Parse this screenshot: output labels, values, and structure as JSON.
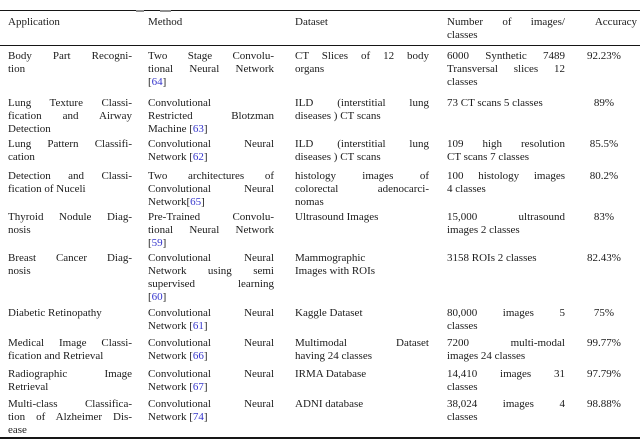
{
  "table": {
    "citation_color": "#3434cc",
    "columns": [
      "Application",
      "Method",
      "Dataset",
      "Number of images/\nclasses",
      "Accuracy"
    ],
    "rows": [
      {
        "application": "Body Part Recogni-\ntion",
        "method": "Two Stage Convolu-\ntional Neural Network\n[64]",
        "dataset": "CT Slices of 12 body\norgans",
        "number": "6000 Synthetic 7489\nTransversal slices 12\nclasses",
        "accuracy": "92.23%"
      },
      {
        "application": "Lung Texture Classi-\nfication and Airway\nDetection",
        "method": "Convolutional\nRestricted Blotzman\nMachine [63]",
        "dataset": "ILD (interstitial lung\ndiseases ) CT scans",
        "number": "73 CT scans 5 classes",
        "accuracy": "89%"
      },
      {
        "application": "Lung Pattern Classifi-\ncation",
        "method": "Convolutional Neural\nNetwork [62]",
        "dataset": "ILD (interstitial lung\ndiseases ) CT scans",
        "number": "109 high resolution\nCT scans 7 classes",
        "accuracy": "85.5%"
      },
      {
        "application": "Detection and Classi-\nfication of Nuceli",
        "method": "Two architectures of\nConvolutional Neural\nNetwork[65]",
        "dataset": "histology images of\ncolorectal adenocarci-\nnomas",
        "number": "100 histology images\n4 classes",
        "accuracy": "80.2%"
      },
      {
        "application": "Thyroid Nodule Diag-\nnosis",
        "method": "Pre-Trained Convolu-\ntional Neural Network\n[59]",
        "dataset": "Ultrasound Images",
        "number": "15,000 ultrasound\nimages 2 classes",
        "accuracy": "83%"
      },
      {
        "application": "Breast Cancer Diag-\nnosis",
        "method": "Convolutional Neural\nNetwork using semi\nsupervised learning\n[60]",
        "dataset": "Mammographic\nImages with ROIs",
        "number": "3158 ROIs 2 classes",
        "accuracy": "82.43%"
      },
      {
        "application": "Diabetic Retinopathy",
        "method": "Convolutional Neural\nNetwork [61]",
        "dataset": "Kaggle Dataset",
        "number": "80,000 images 5\nclasses",
        "accuracy": "75%"
      },
      {
        "application": "Medical Image Classi-\nfication and Retrieval",
        "method": "Convolutional Neural\nNetwork [66]",
        "dataset": "Multimodal Dataset\nhaving 24 classes",
        "number": "7200 multi-modal\nimages 24 classes",
        "accuracy": "99.77%"
      },
      {
        "application": "Radiographic Image\nRetrieval",
        "method": "Convolutional Neural\nNetwork [67]",
        "dataset": "IRMA Database",
        "number": "14,410 images 31\nclasses",
        "accuracy": "97.79%"
      },
      {
        "application": "Multi-class Classifica-\ntion of Alzheimer Dis-\nease",
        "method": "Convolutional Neural\nNetwork [74]",
        "dataset": "ADNI database",
        "number": "38,024 images 4\nclasses",
        "accuracy": "98.88%"
      }
    ]
  }
}
